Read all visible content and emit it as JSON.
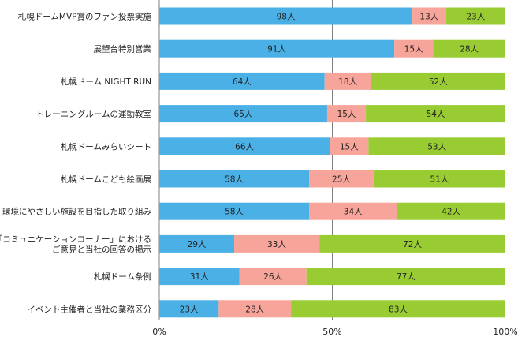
{
  "chart_data": {
    "type": "bar",
    "orientation": "horizontal",
    "stacked": "percent",
    "categories": [
      [
        "札幌ドームMVP賞のファン投票実施"
      ],
      [
        "展望台特別営業"
      ],
      [
        "札幌ドーム NIGHT RUN"
      ],
      [
        "トレーニングルームの運動教室"
      ],
      [
        "札幌ドームみらいシート"
      ],
      [
        "札幌ドームこども絵画展"
      ],
      [
        "環境にやさしい施設を目指した取り組み"
      ],
      [
        "「コミュニケーションコーナー」における",
        "ご意見と当社の回答の掲示"
      ],
      [
        "札幌ドーム条例"
      ],
      [
        "イベント主催者と当社の業務区分"
      ]
    ],
    "series": [
      {
        "values": [
          98,
          91,
          64,
          65,
          66,
          58,
          58,
          29,
          31,
          23
        ],
        "color": "#4bb0e6"
      },
      {
        "values": [
          13,
          15,
          18,
          15,
          15,
          25,
          34,
          33,
          26,
          28
        ],
        "color": "#f7a59a"
      },
      {
        "values": [
          23,
          28,
          52,
          54,
          53,
          51,
          42,
          72,
          77,
          83
        ],
        "color": "#99cc33"
      }
    ],
    "unit": "人",
    "xaxis": {
      "ticks": [
        "0%",
        "50%",
        "100%"
      ]
    },
    "grid": {
      "center_line": true,
      "color": "#808080"
    },
    "legend": "none"
  }
}
